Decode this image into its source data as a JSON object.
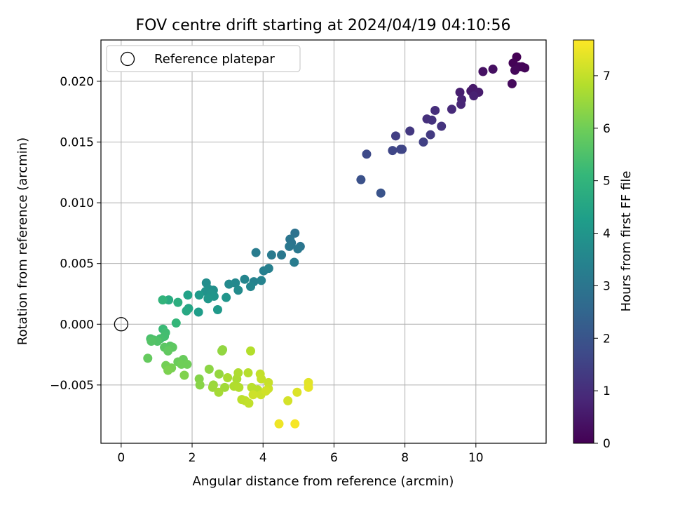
{
  "chart_data": {
    "type": "scatter",
    "title": "FOV centre drift starting at 2024/04/19 04:10:56",
    "xlabel": "Angular distance from reference (arcmin)",
    "ylabel": "Rotation from reference (arcmin)",
    "xlim": [
      -0.57,
      11.98
    ],
    "ylim": [
      -0.0098,
      0.0234
    ],
    "x_ticks": [
      0,
      2,
      4,
      6,
      8,
      10
    ],
    "x_tick_labels": [
      "0",
      "2",
      "4",
      "6",
      "8",
      "10"
    ],
    "y_ticks": [
      -0.005,
      0.0,
      0.005,
      0.01,
      0.015,
      0.02
    ],
    "y_tick_labels": [
      "−0.005",
      "0.000",
      "0.005",
      "0.010",
      "0.015",
      "0.020"
    ],
    "grid": true,
    "legend": {
      "position": "top-left",
      "entries": [
        "Reference platepar"
      ]
    },
    "reference_point": {
      "x": 0.0,
      "y": 0.0,
      "label": "Reference platepar",
      "marker": "open-circle",
      "color": "#000000"
    },
    "colorbar": {
      "label": "Hours from first FF file",
      "colormap": "viridis",
      "range": [
        0,
        7.68
      ],
      "ticks": [
        0,
        1,
        2,
        3,
        4,
        5,
        6,
        7
      ],
      "tick_labels": [
        "0",
        "1",
        "2",
        "3",
        "4",
        "5",
        "6",
        "7"
      ]
    },
    "points": [
      [
        11.15,
        0.022,
        0.0
      ],
      [
        11.05,
        0.0215,
        0.05
      ],
      [
        11.3,
        0.0212,
        0.08
      ],
      [
        11.38,
        0.0211,
        0.1
      ],
      [
        11.22,
        0.0212,
        0.12
      ],
      [
        11.1,
        0.0209,
        0.15
      ],
      [
        11.02,
        0.0198,
        0.2
      ],
      [
        10.48,
        0.021,
        0.3
      ],
      [
        10.2,
        0.0208,
        0.35
      ],
      [
        9.92,
        0.0194,
        0.5
      ],
      [
        9.86,
        0.0192,
        0.55
      ],
      [
        10.08,
        0.0191,
        0.6
      ],
      [
        9.55,
        0.0191,
        0.65
      ],
      [
        9.94,
        0.0188,
        0.7
      ],
      [
        9.6,
        0.0185,
        0.75
      ],
      [
        9.58,
        0.0181,
        0.8
      ],
      [
        9.32,
        0.0177,
        0.9
      ],
      [
        8.85,
        0.0176,
        1.0
      ],
      [
        8.62,
        0.0169,
        1.05
      ],
      [
        8.76,
        0.0168,
        1.1
      ],
      [
        9.03,
        0.0163,
        1.15
      ],
      [
        8.14,
        0.0159,
        1.25
      ],
      [
        8.72,
        0.0156,
        1.3
      ],
      [
        7.74,
        0.0155,
        1.4
      ],
      [
        8.52,
        0.015,
        1.45
      ],
      [
        7.92,
        0.0144,
        1.55
      ],
      [
        7.88,
        0.0144,
        1.58
      ],
      [
        7.65,
        0.0143,
        1.6
      ],
      [
        6.92,
        0.014,
        1.7
      ],
      [
        6.76,
        0.0119,
        1.9
      ],
      [
        7.32,
        0.0108,
        2.0
      ],
      [
        4.9,
        0.0075,
        2.9
      ],
      [
        4.76,
        0.007,
        3.0
      ],
      [
        4.8,
        0.0067,
        3.0
      ],
      [
        5.05,
        0.0064,
        3.0
      ],
      [
        4.74,
        0.0064,
        3.05
      ],
      [
        4.98,
        0.0062,
        3.1
      ],
      [
        4.52,
        0.0057,
        3.1
      ],
      [
        4.24,
        0.0057,
        3.15
      ],
      [
        4.88,
        0.0051,
        3.2
      ],
      [
        3.8,
        0.0059,
        3.2
      ],
      [
        4.02,
        0.0044,
        3.3
      ],
      [
        4.16,
        0.0046,
        3.35
      ],
      [
        3.74,
        0.0035,
        3.4
      ],
      [
        3.95,
        0.0036,
        3.45
      ],
      [
        3.48,
        0.0037,
        3.5
      ],
      [
        3.65,
        0.0031,
        3.55
      ],
      [
        3.22,
        0.0034,
        3.6
      ],
      [
        3.04,
        0.0033,
        3.65
      ],
      [
        3.3,
        0.0028,
        3.7
      ],
      [
        2.4,
        0.0034,
        3.75
      ],
      [
        2.46,
        0.0029,
        3.8
      ],
      [
        2.6,
        0.0028,
        3.85
      ],
      [
        2.38,
        0.0027,
        3.9
      ],
      [
        2.54,
        0.0025,
        3.95
      ],
      [
        2.62,
        0.0023,
        4.0
      ],
      [
        2.96,
        0.0022,
        4.0
      ],
      [
        2.45,
        0.0021,
        4.05
      ],
      [
        2.72,
        0.0012,
        4.1
      ],
      [
        2.2,
        0.0024,
        4.15
      ],
      [
        2.18,
        0.001,
        4.25
      ],
      [
        1.88,
        0.0024,
        4.4
      ],
      [
        1.9,
        0.0013,
        4.5
      ],
      [
        1.84,
        0.0011,
        4.6
      ],
      [
        1.34,
        0.002,
        4.7
      ],
      [
        1.6,
        0.0018,
        4.8
      ],
      [
        1.17,
        0.002,
        5.0
      ],
      [
        1.55,
        0.0001,
        5.1
      ],
      [
        1.18,
        -0.0004,
        5.2
      ],
      [
        1.25,
        -0.0007,
        5.3
      ],
      [
        1.22,
        -0.001,
        5.35
      ],
      [
        1.1,
        -0.0012,
        5.4
      ],
      [
        0.83,
        -0.0012,
        5.45
      ],
      [
        0.92,
        -0.0013,
        5.5
      ],
      [
        1.02,
        -0.0014,
        5.55
      ],
      [
        0.85,
        -0.0014,
        5.6
      ],
      [
        1.38,
        -0.0018,
        5.65
      ],
      [
        1.22,
        -0.0019,
        5.7
      ],
      [
        1.45,
        -0.0019,
        5.75
      ],
      [
        1.32,
        -0.0022,
        5.8
      ],
      [
        0.75,
        -0.0028,
        5.85
      ],
      [
        1.75,
        -0.0029,
        5.9
      ],
      [
        1.6,
        -0.0031,
        5.95
      ],
      [
        1.7,
        -0.0033,
        6.0
      ],
      [
        1.86,
        -0.0033,
        6.0
      ],
      [
        1.26,
        -0.0034,
        6.05
      ],
      [
        1.42,
        -0.0036,
        6.1
      ],
      [
        1.32,
        -0.0038,
        6.15
      ],
      [
        1.78,
        -0.0042,
        6.2
      ],
      [
        2.2,
        -0.0045,
        6.25
      ],
      [
        2.22,
        -0.005,
        6.3
      ],
      [
        2.48,
        -0.0037,
        6.35
      ],
      [
        2.86,
        -0.0021,
        6.4
      ],
      [
        2.84,
        -0.0022,
        6.42
      ],
      [
        2.76,
        -0.0041,
        6.45
      ],
      [
        2.6,
        -0.005,
        6.5
      ],
      [
        2.58,
        -0.0052,
        6.55
      ],
      [
        2.92,
        -0.0052,
        6.6
      ],
      [
        2.75,
        -0.0056,
        6.65
      ],
      [
        3.0,
        -0.0044,
        6.7
      ],
      [
        3.26,
        -0.0045,
        6.72
      ],
      [
        3.3,
        -0.004,
        6.75
      ],
      [
        3.18,
        -0.0051,
        6.78
      ],
      [
        3.32,
        -0.0052,
        6.8
      ],
      [
        3.65,
        -0.0022,
        6.82
      ],
      [
        3.58,
        -0.004,
        6.85
      ],
      [
        3.68,
        -0.0052,
        6.88
      ],
      [
        3.85,
        -0.0054,
        6.9
      ],
      [
        3.4,
        -0.0062,
        6.92
      ],
      [
        3.5,
        -0.0063,
        6.95
      ],
      [
        3.6,
        -0.0065,
        6.98
      ],
      [
        3.92,
        -0.0041,
        7.0
      ],
      [
        3.95,
        -0.0045,
        7.02
      ],
      [
        4.15,
        -0.0048,
        7.05
      ],
      [
        4.15,
        -0.0053,
        7.08
      ],
      [
        3.94,
        -0.0058,
        7.1
      ],
      [
        3.72,
        -0.0058,
        7.12
      ],
      [
        4.08,
        -0.0055,
        7.15
      ],
      [
        4.7,
        -0.0063,
        7.2
      ],
      [
        4.96,
        -0.0056,
        7.3
      ],
      [
        5.28,
        -0.0048,
        7.35
      ],
      [
        5.28,
        -0.0052,
        7.4
      ],
      [
        4.45,
        -0.0082,
        7.5
      ],
      [
        4.9,
        -0.0082,
        7.6
      ]
    ]
  }
}
